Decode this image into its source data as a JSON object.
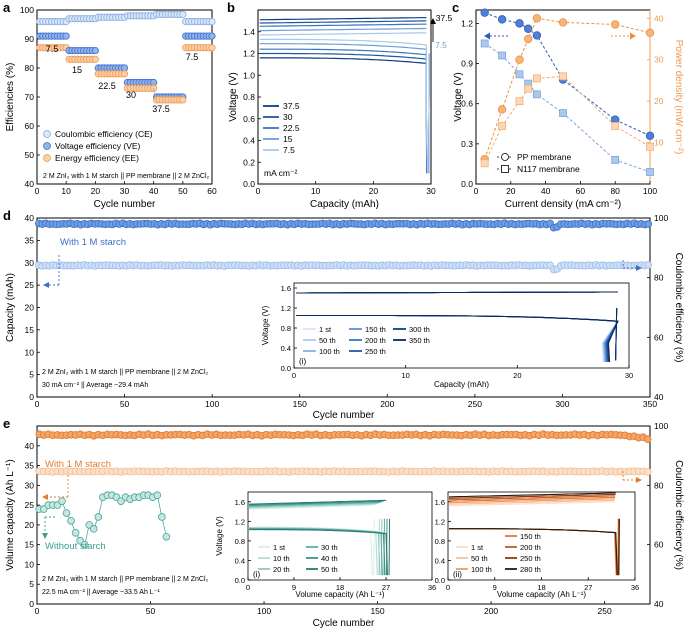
{
  "chart_data": [
    {
      "panel": "a",
      "type": "scatter",
      "xlabel": "Cycle number",
      "ylabel": "Efficiencies (%)",
      "xlim": [
        0,
        60
      ],
      "ylim": [
        40,
        100
      ],
      "xticks": [
        0,
        10,
        20,
        30,
        40,
        50,
        60
      ],
      "yticks": [
        40,
        50,
        60,
        70,
        80,
        90,
        100
      ],
      "segments": [
        {
          "label": "7.5",
          "x0": 1,
          "x1": 10,
          "ce": 96,
          "ve": 91,
          "ee": 87
        },
        {
          "label": "15",
          "x0": 11,
          "x1": 20,
          "ce": 97,
          "ve": 86,
          "ee": 83
        },
        {
          "label": "22.5",
          "x0": 21,
          "x1": 30,
          "ce": 97.5,
          "ve": 80,
          "ee": 78
        },
        {
          "label": "30",
          "x0": 31,
          "x1": 40,
          "ce": 98,
          "ve": 75,
          "ee": 73
        },
        {
          "label": "37.5",
          "x0": 41,
          "x1": 50,
          "ce": 98.5,
          "ve": 70,
          "ee": 69
        },
        {
          "label": "7.5",
          "x0": 51,
          "x1": 60,
          "ce": 96,
          "ve": 91,
          "ee": 87
        }
      ],
      "legend": [
        "Coulombic efficiency (CE)",
        "Voltage efficiency (VE)",
        "Energy efficiency (EE)"
      ],
      "note": "2 M ZnI₂ with 1 M starch || PP membrane || 2 M ZnCl₂"
    },
    {
      "panel": "b",
      "type": "line",
      "xlabel": "Capacity (mAh)",
      "ylabel": "Voltage (V)",
      "xlim": [
        0,
        30
      ],
      "ylim": [
        0.0,
        1.6
      ],
      "xticks": [
        0,
        10,
        20,
        30
      ],
      "yticks": [
        0.0,
        0.2,
        0.4,
        0.6,
        0.8,
        1.0,
        1.2,
        1.4
      ],
      "series": [
        {
          "name": "37.5",
          "charge": 1.51,
          "discharge": 1.16
        },
        {
          "name": "30",
          "charge": 1.48,
          "discharge": 1.2
        },
        {
          "name": "22.5",
          "charge": 1.45,
          "discharge": 1.24
        },
        {
          "name": "15",
          "charge": 1.41,
          "discharge": 1.29
        },
        {
          "name": "7.5",
          "charge": 1.37,
          "discharge": 1.33
        }
      ],
      "legend_unit": "mA cm⁻²",
      "annotations": [
        "37.5",
        "7.5"
      ]
    },
    {
      "panel": "c",
      "type": "line",
      "xlabel": "Current density (mA cm⁻²)",
      "ylabel": "Voltage (V)",
      "ylabel2": "Power density (mW cm⁻²)",
      "xlim": [
        0,
        100
      ],
      "ylim": [
        0.0,
        1.3
      ],
      "y2lim": [
        0,
        42
      ],
      "xticks": [
        0,
        20,
        40,
        60,
        80,
        100
      ],
      "yticks": [
        0.0,
        0.3,
        0.6,
        0.9,
        1.2
      ],
      "y2ticks": [
        10,
        20,
        30,
        40
      ],
      "x": [
        5,
        15,
        25,
        30,
        35,
        50,
        80,
        100
      ],
      "series": [
        {
          "name": "PP membrane voltage",
          "values": [
            1.28,
            1.23,
            1.2,
            1.16,
            1.11,
            0.78,
            0.48,
            0.36
          ]
        },
        {
          "name": "N117 voltage",
          "values": [
            1.05,
            0.96,
            0.82,
            0.75,
            0.67,
            0.53,
            0.18,
            0.09
          ]
        },
        {
          "name": "PP membrane power",
          "values": [
            6,
            18,
            30,
            35,
            40,
            39,
            38.5,
            36.5
          ]
        },
        {
          "name": "N117 power",
          "values": [
            5,
            14,
            20,
            23,
            25.5,
            26,
            14,
            9
          ]
        }
      ],
      "legend": [
        "PP membrane",
        "N117 membrane"
      ]
    },
    {
      "panel": "d",
      "type": "scatter",
      "xlabel": "Cycle number",
      "ylabel": "Capacity (mAh)",
      "ylabel2": "Coulombic efficiency (%)",
      "xlim": [
        0,
        350
      ],
      "ylim": [
        0,
        40
      ],
      "y2lim": [
        40,
        100
      ],
      "xticks": [
        0,
        50,
        100,
        150,
        200,
        250,
        300,
        350
      ],
      "yticks": [
        0,
        5,
        10,
        15,
        20,
        25,
        30,
        35,
        40
      ],
      "y2ticks": [
        40,
        60,
        80,
        100
      ],
      "capacity_avg": 29.4,
      "ce_avg": 98,
      "series_label": "With 1 M starch",
      "note1": "2 M ZnI₂ with 1 M starch || PP membrane || 2 M ZnCl₂",
      "note2": "30 mA cm⁻² || Average ~29.4 mAh",
      "inset": {
        "xlabel": "Capacity (mAh)",
        "ylabel": "Voltage (V)",
        "tag": "(i)",
        "xlim": [
          0,
          30
        ],
        "ylim": [
          0.0,
          1.7
        ],
        "xticks": [
          0,
          10,
          20,
          30
        ],
        "yticks": [
          0.0,
          0.4,
          0.8,
          1.2,
          1.6
        ],
        "legend": [
          "1 st",
          "50 th",
          "100 th",
          "150 th",
          "200 th",
          "250 th",
          "300 th",
          "350 th"
        ]
      }
    },
    {
      "panel": "e",
      "type": "scatter",
      "xlabel": "Cycle number",
      "ylabel": "Volume capacity (Ah L⁻¹)",
      "ylabel2": "Coulombic efficiency (%)",
      "xlim": [
        0,
        270
      ],
      "ylim": [
        0,
        45
      ],
      "y2lim": [
        40,
        100
      ],
      "xticks": [
        0,
        50,
        100,
        150,
        200,
        250
      ],
      "yticks": [
        0,
        5,
        10,
        15,
        20,
        25,
        30,
        35,
        40
      ],
      "y2ticks": [
        40,
        60,
        80,
        100
      ],
      "capacity_avg": 33.5,
      "ce_avg": 97,
      "series_label": "With 1 M starch",
      "series_label2": "Without starch",
      "without_starch": {
        "x": [
          1,
          3,
          5,
          7,
          9,
          11,
          13,
          15,
          17,
          19,
          21,
          23,
          25,
          27,
          29,
          31,
          33,
          35,
          37,
          39,
          41,
          43,
          45,
          47,
          49,
          51,
          53,
          55,
          57
        ],
        "y": [
          24,
          24,
          25,
          25,
          25,
          26,
          23,
          21,
          18,
          16,
          15,
          20,
          19,
          22,
          27,
          27.5,
          27.5,
          27,
          26,
          27,
          26.5,
          27,
          27,
          27.5,
          27.5,
          27,
          27.5,
          22,
          17
        ]
      },
      "note1": "2 M ZnI₂ with 1 M starch || PP membrane || 2 M ZnCl₂",
      "note2": "22.5 mA cm⁻² || Average ~33.5 Ah L⁻¹",
      "inset1": {
        "xlabel": "Volume capacity (Ah L⁻¹)",
        "ylabel": "Voltage (V)",
        "tag": "(i)",
        "xlim": [
          0,
          36
        ],
        "ylim": [
          0.0,
          1.8
        ],
        "xticks": [
          0,
          9,
          18,
          27,
          36
        ],
        "yticks": [
          0.0,
          0.4,
          0.8,
          1.2,
          1.6
        ],
        "legend": [
          "1 st",
          "10 th",
          "20 th",
          "30 th",
          "40 th",
          "50 th"
        ],
        "ends": [
          24,
          25,
          25.5,
          26,
          26.5,
          27
        ]
      },
      "inset2": {
        "xlabel": "Volume capacity (Ah L⁻¹)",
        "tag": "(ii)",
        "xlim": [
          0,
          36
        ],
        "ylim": [
          0.0,
          1.8
        ],
        "xticks": [
          0,
          9,
          18,
          27,
          36
        ],
        "yticks": [
          0.0,
          0.4,
          0.8,
          1.2,
          1.6
        ],
        "legend": [
          "1 st",
          "50 th",
          "100 th",
          "150 th",
          "200 th",
          "250 th",
          "280 th"
        ]
      }
    }
  ],
  "labels": {
    "a": "a",
    "b": "b",
    "c": "c",
    "d": "d",
    "e": "e"
  }
}
